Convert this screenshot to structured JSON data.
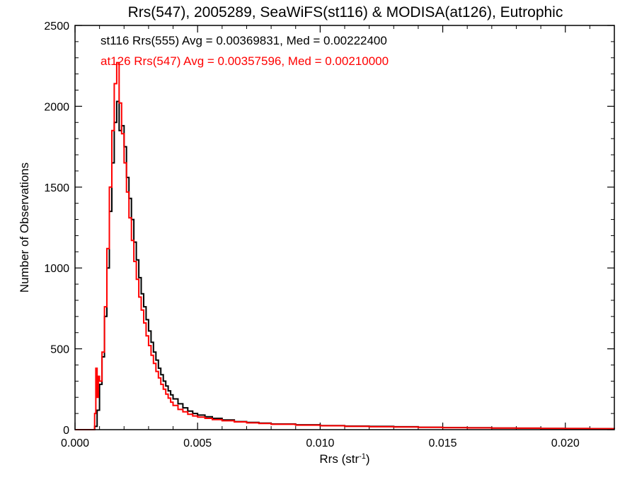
{
  "chart_data": {
    "type": "line",
    "title": "Rrs(547), 2005289, SeaWiFS(st116) & MODISA(at126), Eutrophic",
    "xlabel": "Rrs (str",
    "xlabel_sup": "-1",
    "xlabel_close": ")",
    "ylabel": "Number of Observations",
    "xlim": [
      0.0,
      0.022
    ],
    "ylim": [
      0,
      2500
    ],
    "grid": false,
    "x_ticks": [
      "0.000",
      "0.005",
      "0.010",
      "0.015",
      "0.020"
    ],
    "y_ticks": [
      "0",
      "500",
      "1000",
      "1500",
      "2000",
      "2500"
    ],
    "colors": {
      "st116": "#000000",
      "at126": "#ff0000"
    },
    "series": [
      {
        "key": "st116",
        "annotation": "st116 Rrs(555) Avg = 0.00369831, Med = 0.00222400",
        "color": "#000000",
        "x": [
          0.0,
          0.0008,
          0.0009,
          0.001,
          0.0011,
          0.0012,
          0.0013,
          0.0014,
          0.0015,
          0.0016,
          0.0017,
          0.0018,
          0.0019,
          0.002,
          0.0021,
          0.0022,
          0.0023,
          0.0024,
          0.0025,
          0.0026,
          0.0027,
          0.0028,
          0.0029,
          0.003,
          0.0031,
          0.0032,
          0.0033,
          0.0034,
          0.0035,
          0.0036,
          0.0037,
          0.0038,
          0.0039,
          0.004,
          0.0042,
          0.0044,
          0.0046,
          0.0048,
          0.005,
          0.0053,
          0.0056,
          0.006,
          0.0065,
          0.007,
          0.0075,
          0.008,
          0.009,
          0.01,
          0.011,
          0.012,
          0.013,
          0.014,
          0.015,
          0.016,
          0.017,
          0.018,
          0.019,
          0.02,
          0.021,
          0.022
        ],
        "y": [
          0,
          20,
          120,
          280,
          450,
          700,
          1000,
          1350,
          1650,
          1900,
          2030,
          1850,
          1880,
          1750,
          1560,
          1430,
          1300,
          1160,
          1050,
          940,
          840,
          760,
          680,
          610,
          540,
          480,
          430,
          380,
          340,
          300,
          270,
          240,
          215,
          190,
          160,
          135,
          115,
          100,
          90,
          80,
          70,
          60,
          50,
          45,
          40,
          35,
          30,
          25,
          22,
          20,
          18,
          15,
          13,
          12,
          10,
          9,
          8,
          7,
          6,
          5
        ]
      },
      {
        "key": "at126",
        "annotation": "at126 Rrs(547) Avg = 0.00357596, Med = 0.00210000",
        "color": "#ff0000",
        "x": [
          0.0,
          0.0008,
          0.00085,
          0.0009,
          0.00095,
          0.001,
          0.0011,
          0.0012,
          0.0013,
          0.0014,
          0.0015,
          0.0016,
          0.0017,
          0.0018,
          0.0019,
          0.002,
          0.0021,
          0.0022,
          0.0023,
          0.0024,
          0.0025,
          0.0026,
          0.0027,
          0.0028,
          0.0029,
          0.003,
          0.0031,
          0.0032,
          0.0033,
          0.0034,
          0.0035,
          0.0036,
          0.0037,
          0.0038,
          0.0039,
          0.004,
          0.0042,
          0.0044,
          0.0046,
          0.0048,
          0.005,
          0.0053,
          0.0056,
          0.006,
          0.0065,
          0.007,
          0.0075,
          0.008,
          0.009,
          0.01,
          0.011,
          0.012,
          0.013,
          0.014,
          0.015,
          0.016,
          0.017,
          0.018,
          0.019,
          0.02,
          0.021,
          0.022
        ],
        "y": [
          0,
          100,
          380,
          200,
          330,
          300,
          480,
          760,
          1120,
          1500,
          1850,
          2140,
          2270,
          2020,
          1830,
          1650,
          1470,
          1310,
          1170,
          1040,
          930,
          820,
          740,
          660,
          580,
          520,
          460,
          410,
          360,
          320,
          280,
          250,
          220,
          195,
          170,
          150,
          125,
          110,
          95,
          85,
          78,
          70,
          62,
          55,
          48,
          42,
          38,
          33,
          28,
          24,
          20,
          18,
          16,
          14,
          12,
          11,
          10,
          9,
          8,
          7,
          6,
          5
        ]
      }
    ]
  }
}
